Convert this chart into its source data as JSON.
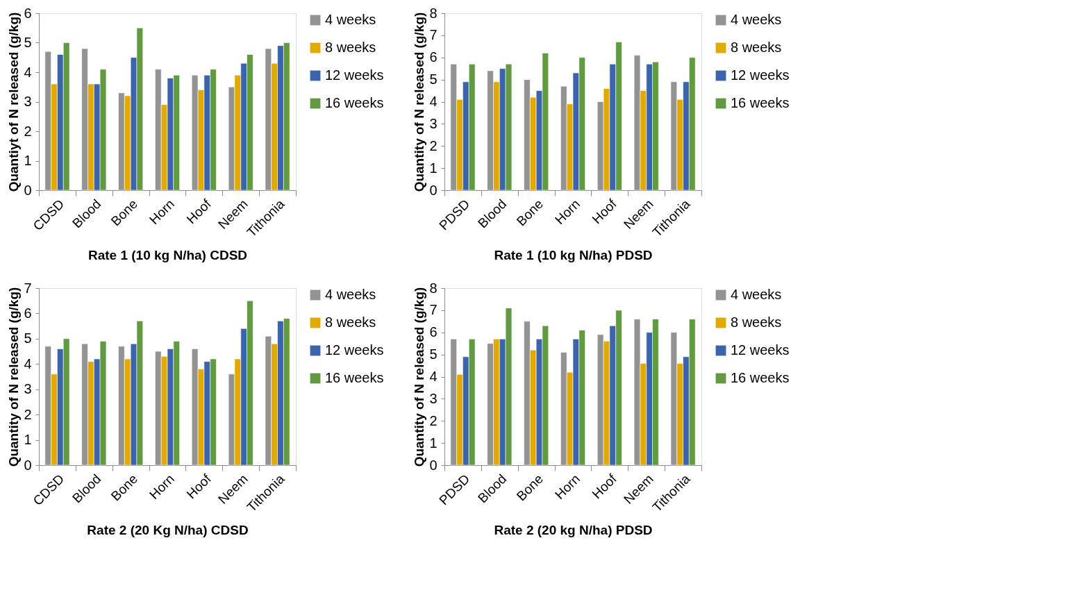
{
  "chart_data": [
    {
      "type": "bar",
      "xlabel": "Rate 1 (10 kg N/ha) CDSD",
      "ylabel": "Quantiyt of N released (g/kg)",
      "categories": [
        "CDSD",
        "Blood",
        "Bone",
        "Horn",
        "Hoof",
        "Neem",
        "Tithonia"
      ],
      "ylim": [
        0,
        6
      ],
      "yticks": [
        0,
        1,
        2,
        3,
        4,
        5,
        6
      ],
      "grid": false,
      "legend": "right",
      "series": [
        {
          "name": "4 weeks",
          "color": "#939393",
          "values": [
            4.7,
            4.8,
            3.3,
            4.1,
            3.9,
            3.5,
            4.8
          ]
        },
        {
          "name": "8 weeks",
          "color": "#e2a900",
          "values": [
            3.6,
            3.6,
            3.2,
            2.9,
            3.4,
            3.9,
            4.3
          ]
        },
        {
          "name": "12 weeks",
          "color": "#3c64ad",
          "values": [
            4.6,
            3.6,
            4.5,
            3.8,
            3.9,
            4.3,
            4.9
          ]
        },
        {
          "name": "16 weeks",
          "color": "#629a41",
          "values": [
            5.0,
            4.1,
            5.5,
            3.9,
            4.1,
            4.6,
            5.0
          ]
        }
      ]
    },
    {
      "type": "bar",
      "xlabel": "Rate 1 (10 kg N/ha) PDSD",
      "ylabel": "Quantity of N released (g/kg)",
      "categories": [
        "PDSD",
        "Blood",
        "Bone",
        "Horn",
        "Hoof",
        "Neem",
        "Tithonia"
      ],
      "ylim": [
        0,
        8
      ],
      "yticks": [
        0,
        1,
        2,
        3,
        4,
        5,
        6,
        7,
        8
      ],
      "grid": false,
      "legend": "right",
      "series": [
        {
          "name": "4 weeks",
          "color": "#939393",
          "values": [
            5.7,
            5.4,
            5.0,
            4.7,
            4.0,
            6.1,
            4.9
          ]
        },
        {
          "name": "8 weeks",
          "color": "#e2a900",
          "values": [
            4.1,
            4.9,
            4.2,
            3.9,
            4.6,
            4.5,
            4.1
          ]
        },
        {
          "name": "12 weeks",
          "color": "#3c64ad",
          "values": [
            4.9,
            5.5,
            4.5,
            5.3,
            5.7,
            5.7,
            4.9
          ]
        },
        {
          "name": "16 weeks",
          "color": "#629a41",
          "values": [
            5.7,
            5.7,
            6.2,
            6.0,
            6.7,
            5.8,
            6.0
          ]
        }
      ]
    },
    {
      "type": "bar",
      "xlabel": "Rate 2 (20 Kg N/ha) CDSD",
      "ylabel": "Quantity of N released (g/kg)",
      "categories": [
        "CDSD",
        "Blood",
        "Bone",
        "Horn",
        "Hoof",
        "Neem",
        "Tithonia"
      ],
      "ylim": [
        0,
        7
      ],
      "yticks": [
        0,
        1,
        2,
        3,
        4,
        5,
        6,
        7
      ],
      "grid": false,
      "legend": "right",
      "series": [
        {
          "name": "4 weeks",
          "color": "#939393",
          "values": [
            4.7,
            4.8,
            4.7,
            4.5,
            4.6,
            3.6,
            5.1
          ]
        },
        {
          "name": "8 weeks",
          "color": "#e2a900",
          "values": [
            3.6,
            4.1,
            4.2,
            4.3,
            3.8,
            4.2,
            4.8
          ]
        },
        {
          "name": "12 weeks",
          "color": "#3c64ad",
          "values": [
            4.6,
            4.2,
            4.8,
            4.6,
            4.1,
            5.4,
            5.7
          ]
        },
        {
          "name": "16 weeks",
          "color": "#629a41",
          "values": [
            5.0,
            4.9,
            5.7,
            4.9,
            4.2,
            6.5,
            5.8
          ]
        }
      ]
    },
    {
      "type": "bar",
      "xlabel": "Rate 2 (20 kg N/ha) PDSD",
      "ylabel": "Quantity of N released (g/kg)",
      "categories": [
        "PDSD",
        "Blood",
        "Bone",
        "Horn",
        "Hoof",
        "Neem",
        "Tithonia"
      ],
      "ylim": [
        0,
        8
      ],
      "yticks": [
        0,
        1,
        2,
        3,
        4,
        5,
        6,
        7,
        8
      ],
      "grid": false,
      "legend": "right",
      "series": [
        {
          "name": "4 weeks",
          "color": "#939393",
          "values": [
            5.7,
            5.5,
            6.5,
            5.1,
            5.9,
            6.6,
            6.0
          ]
        },
        {
          "name": "8 weeks",
          "color": "#e2a900",
          "values": [
            4.1,
            5.7,
            5.2,
            4.2,
            5.6,
            4.6,
            4.6
          ]
        },
        {
          "name": "12 weeks",
          "color": "#3c64ad",
          "values": [
            4.9,
            5.7,
            5.7,
            5.7,
            6.3,
            6.0,
            4.9
          ]
        },
        {
          "name": "16 weeks",
          "color": "#629a41",
          "values": [
            5.7,
            7.1,
            6.3,
            6.1,
            7.0,
            6.6,
            6.6
          ]
        }
      ]
    }
  ]
}
